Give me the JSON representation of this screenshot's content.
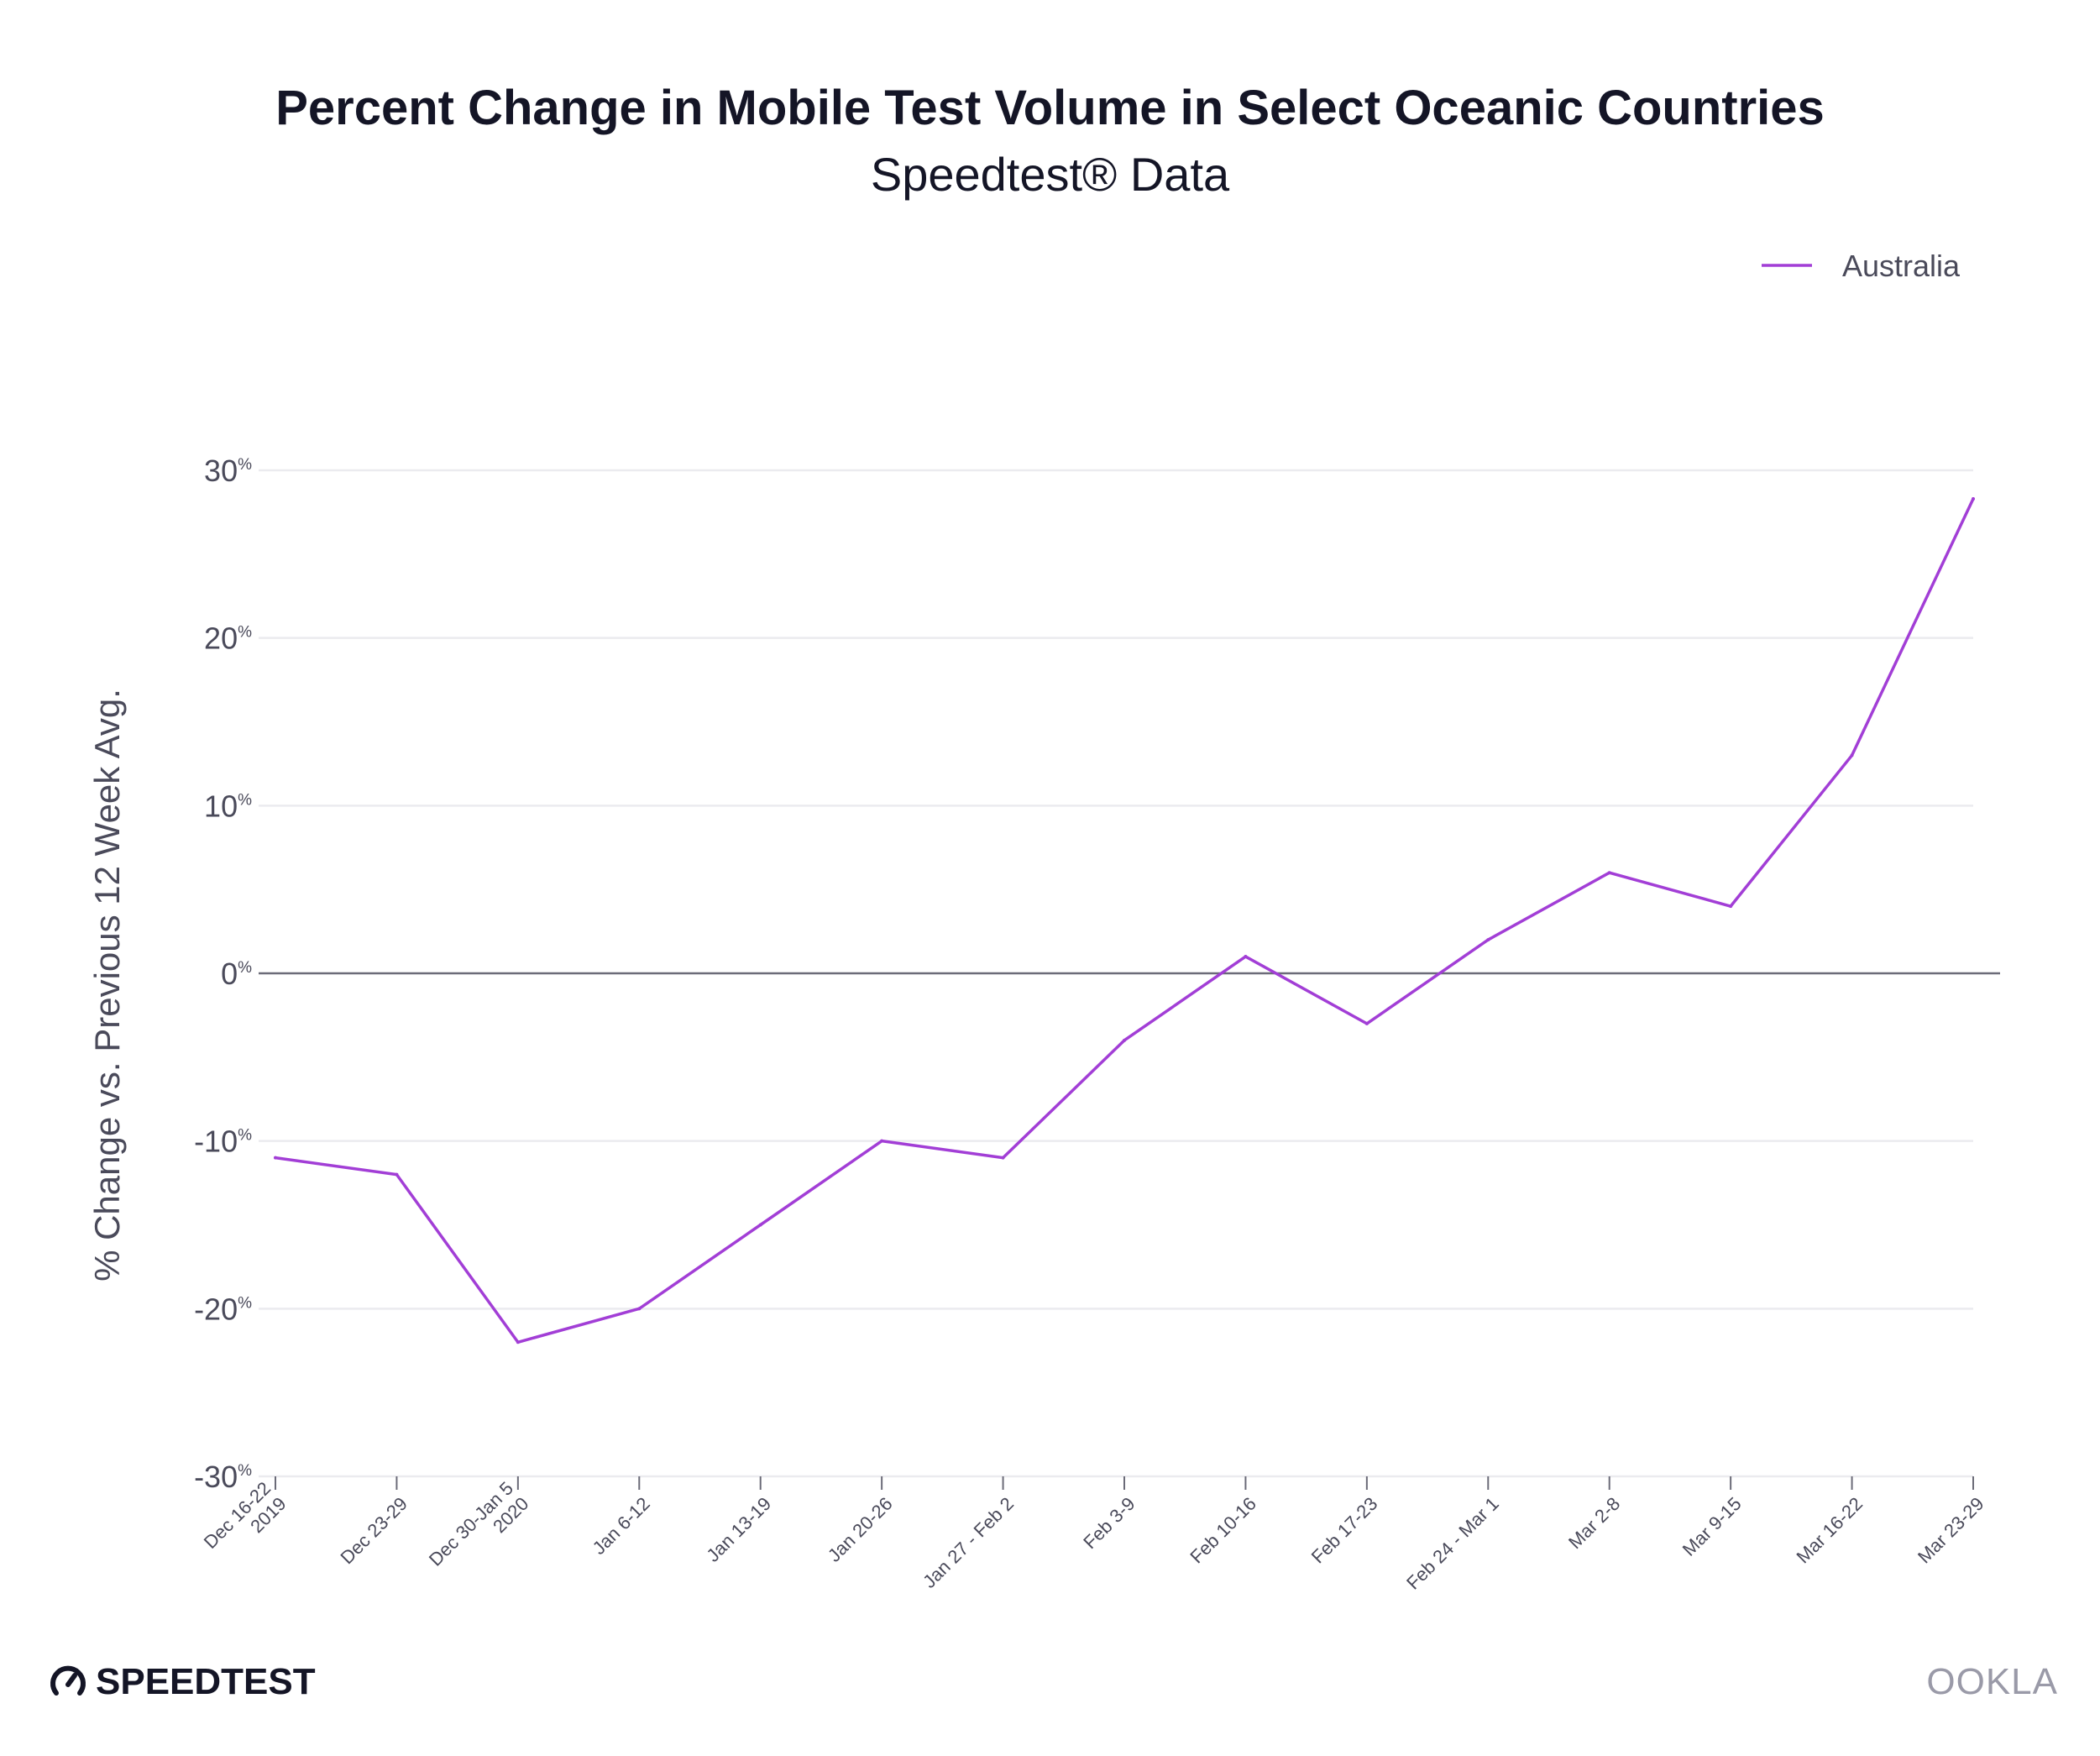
{
  "chart_data": {
    "type": "line",
    "title": "Percent Change in Mobile Test Volume in Select Oceanic Countries",
    "subtitle": "Speedtest® Data",
    "ylabel": "% Change vs. Previous 12 Week Avg.",
    "xlabel": "",
    "ylim": [
      -30,
      30
    ],
    "yticks": [
      30,
      20,
      10,
      0,
      -10,
      -20,
      -30
    ],
    "ytick_suffix": "%",
    "categories": [
      [
        "Dec 16-22",
        "2019"
      ],
      [
        "Dec 23-29"
      ],
      [
        "Dec 30-Jan 5",
        "2020"
      ],
      [
        "Jan 6-12"
      ],
      [
        "Jan 13-19"
      ],
      [
        "Jan 20-26"
      ],
      [
        "Jan 27 - Feb 2"
      ],
      [
        "Feb 3-9"
      ],
      [
        "Feb 10-16"
      ],
      [
        "Feb 17-23"
      ],
      [
        "Feb 24 - Mar 1"
      ],
      [
        "Mar 2-8"
      ],
      [
        "Mar 9-15"
      ],
      [
        "Mar 16-22"
      ],
      [
        "Mar 23-29"
      ]
    ],
    "series": [
      {
        "name": "Australia",
        "color": "#a23ed6",
        "values": [
          -11,
          -12,
          -22,
          -20,
          -15,
          -10,
          -11,
          -4,
          1,
          -3,
          2,
          6,
          4,
          13,
          28.3
        ]
      }
    ],
    "legend_position": "top-right",
    "grid": "horizontal"
  },
  "branding": {
    "left": "SPEEDTEST",
    "right": "OOKLA"
  }
}
